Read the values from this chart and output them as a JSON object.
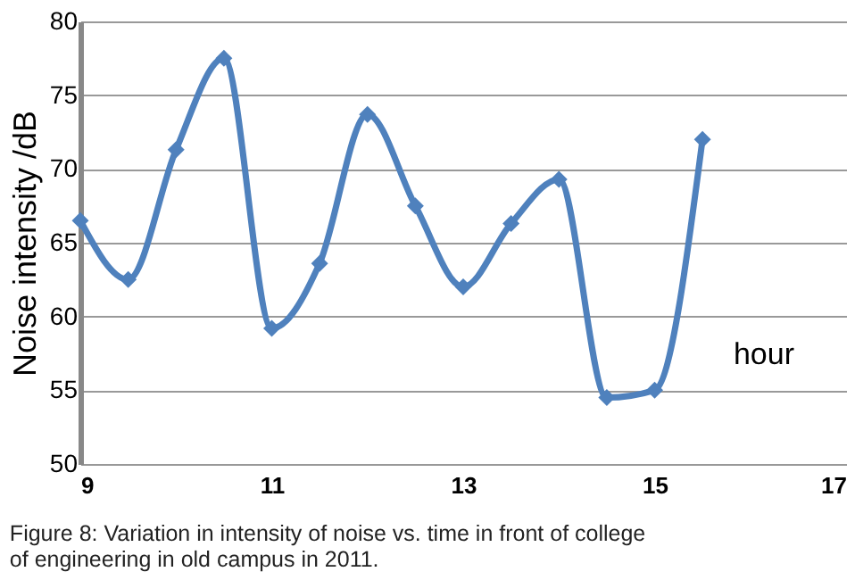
{
  "chart_data": {
    "type": "line",
    "xlabel": "hour",
    "ylabel": "Noise intensity /dB",
    "x": [
      9,
      9.5,
      10,
      10.5,
      11,
      11.5,
      12,
      12.5,
      13,
      13.5,
      14,
      14.5,
      15,
      15.5
    ],
    "series": [
      {
        "color": "#4f81bd",
        "values": [
          66.5,
          62.5,
          71.3,
          77.5,
          59.2,
          63.6,
          73.7,
          67.5,
          62,
          66.3,
          69.3,
          54.5,
          55,
          72
        ]
      }
    ],
    "xlim": [
      9,
      17
    ],
    "xticks": [
      9,
      11,
      13,
      15,
      17
    ],
    "ylim": [
      50,
      80
    ],
    "yticks": [
      50,
      55,
      60,
      65,
      70,
      75,
      80
    ],
    "grid": "y",
    "marker": "diamond",
    "line_style": "solid",
    "annotations": [
      "Figure 8: Variation in intensity of noise vs. time in front of college of engineering in old campus in 2011."
    ]
  }
}
